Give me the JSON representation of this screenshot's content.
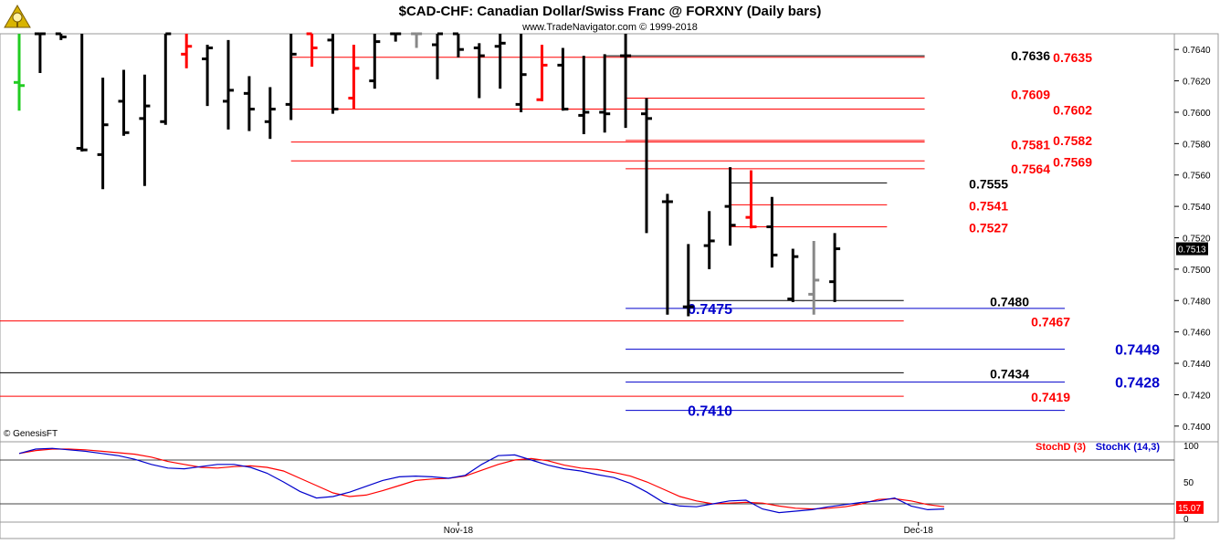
{
  "header": {
    "title": "$CAD-CHF:  Canadian Dollar/Swiss Franc @ FORXNY  (Daily bars)",
    "subtitle": "www.TradeNavigator.com © 1999-2018",
    "logo_icon": "trade-navigator-logo-icon"
  },
  "copyright": "© GenesisFT",
  "colors": {
    "bar_black": "#000000",
    "bar_red": "#ff0000",
    "bar_green": "#22cc22",
    "bar_gray": "#888888",
    "level_red": "#ff0000",
    "level_black": "#000000",
    "level_blue": "#0000cc",
    "stoch_d": "#ff0000",
    "stoch_k": "#0000ff",
    "last_price_bg": "#000000"
  },
  "chart_data": [
    {
      "type": "ohlc",
      "name": "price",
      "ylim": [
        0.739,
        0.765
      ],
      "yticks": [
        0.74,
        0.742,
        0.744,
        0.746,
        0.748,
        0.75,
        0.752,
        0.754,
        0.756,
        0.758,
        0.76,
        0.762,
        0.764
      ],
      "ytick_labels": [
        "0.7400",
        "0.7420",
        "0.7440",
        "0.7460",
        "0.7480",
        "0.7500",
        "0.7520",
        "0.7540",
        "0.7560",
        "0.7580",
        "0.7600",
        "0.7620",
        "0.7640"
      ],
      "xticks": [
        {
          "label": "Nov-18",
          "bar": 21
        },
        {
          "label": "Dec-18",
          "bar": 43
        }
      ],
      "last_price": "0.7513",
      "bars": [
        {
          "o": 0.7619,
          "h": 0.765,
          "l": 0.7601,
          "c": 0.7617,
          "color": "green"
        },
        {
          "o": 0.765,
          "h": 0.765,
          "l": 0.7625,
          "c": 0.765,
          "color": "black"
        },
        {
          "o": 0.765,
          "h": 0.765,
          "l": 0.7646,
          "c": 0.7648,
          "color": "black"
        },
        {
          "o": 0.7577,
          "h": 0.765,
          "l": 0.7575,
          "c": 0.7576,
          "color": "black"
        },
        {
          "o": 0.7573,
          "h": 0.7622,
          "l": 0.7551,
          "c": 0.7592,
          "color": "black"
        },
        {
          "o": 0.7607,
          "h": 0.7627,
          "l": 0.7585,
          "c": 0.7587,
          "color": "black"
        },
        {
          "o": 0.7596,
          "h": 0.7624,
          "l": 0.7553,
          "c": 0.7604,
          "color": "black"
        },
        {
          "o": 0.7594,
          "h": 0.765,
          "l": 0.7592,
          "c": 0.765,
          "color": "black"
        },
        {
          "o": 0.7637,
          "h": 0.765,
          "l": 0.7628,
          "c": 0.7642,
          "color": "red"
        },
        {
          "o": 0.7634,
          "h": 0.7643,
          "l": 0.7604,
          "c": 0.7641,
          "color": "black"
        },
        {
          "o": 0.7607,
          "h": 0.7646,
          "l": 0.7589,
          "c": 0.7614,
          "color": "black"
        },
        {
          "o": 0.7612,
          "h": 0.7623,
          "l": 0.7588,
          "c": 0.7602,
          "color": "black"
        },
        {
          "o": 0.7594,
          "h": 0.7616,
          "l": 0.7583,
          "c": 0.7602,
          "color": "black"
        },
        {
          "o": 0.7605,
          "h": 0.765,
          "l": 0.7595,
          "c": 0.7637,
          "color": "black"
        },
        {
          "o": 0.765,
          "h": 0.765,
          "l": 0.7629,
          "c": 0.7641,
          "color": "red"
        },
        {
          "o": 0.7646,
          "h": 0.765,
          "l": 0.7599,
          "c": 0.7602,
          "color": "black"
        },
        {
          "o": 0.7609,
          "h": 0.7643,
          "l": 0.7602,
          "c": 0.7628,
          "color": "red"
        },
        {
          "o": 0.762,
          "h": 0.765,
          "l": 0.7615,
          "c": 0.7645,
          "color": "black"
        },
        {
          "o": 0.765,
          "h": 0.765,
          "l": 0.7645,
          "c": 0.765,
          "color": "black"
        },
        {
          "o": 0.765,
          "h": 0.765,
          "l": 0.7641,
          "c": 0.765,
          "color": "gray"
        },
        {
          "o": 0.7643,
          "h": 0.765,
          "l": 0.7621,
          "c": 0.765,
          "color": "black"
        },
        {
          "o": 0.765,
          "h": 0.765,
          "l": 0.7635,
          "c": 0.764,
          "color": "black"
        },
        {
          "o": 0.7641,
          "h": 0.7644,
          "l": 0.7609,
          "c": 0.7636,
          "color": "black"
        },
        {
          "o": 0.7642,
          "h": 0.765,
          "l": 0.7615,
          "c": 0.7644,
          "color": "black"
        },
        {
          "o": 0.7605,
          "h": 0.765,
          "l": 0.76,
          "c": 0.7624,
          "color": "black"
        },
        {
          "o": 0.7608,
          "h": 0.7643,
          "l": 0.7607,
          "c": 0.763,
          "color": "red"
        },
        {
          "o": 0.763,
          "h": 0.7641,
          "l": 0.7601,
          "c": 0.7602,
          "color": "black"
        },
        {
          "o": 0.7598,
          "h": 0.7636,
          "l": 0.7586,
          "c": 0.76,
          "color": "black"
        },
        {
          "o": 0.76,
          "h": 0.7637,
          "l": 0.7587,
          "c": 0.7599,
          "color": "black"
        },
        {
          "o": 0.7636,
          "h": 0.765,
          "l": 0.759,
          "c": 0.7636,
          "color": "black"
        },
        {
          "o": 0.7599,
          "h": 0.7609,
          "l": 0.7523,
          "c": 0.7596,
          "color": "black"
        },
        {
          "o": 0.7543,
          "h": 0.7548,
          "l": 0.7471,
          "c": 0.7543,
          "color": "black"
        },
        {
          "o": 0.7476,
          "h": 0.7516,
          "l": 0.747,
          "c": 0.7476,
          "color": "black"
        },
        {
          "o": 0.7515,
          "h": 0.7537,
          "l": 0.75,
          "c": 0.7518,
          "color": "black"
        },
        {
          "o": 0.754,
          "h": 0.7565,
          "l": 0.7515,
          "c": 0.7528,
          "color": "black"
        },
        {
          "o": 0.7533,
          "h": 0.7563,
          "l": 0.7526,
          "c": 0.7527,
          "color": "red"
        },
        {
          "o": 0.7527,
          "h": 0.7546,
          "l": 0.7501,
          "c": 0.7509,
          "color": "black"
        },
        {
          "o": 0.7481,
          "h": 0.7513,
          "l": 0.7479,
          "c": 0.7508,
          "color": "black"
        },
        {
          "o": 0.7484,
          "h": 0.7518,
          "l": 0.7471,
          "c": 0.7493,
          "color": "gray"
        },
        {
          "o": 0.7492,
          "h": 0.7523,
          "l": 0.7479,
          "c": 0.7513,
          "color": "black"
        }
      ],
      "levels": [
        {
          "value": 0.7636,
          "label": "0.7636",
          "color": "black",
          "x_from_bar": 28,
          "x_to_bar": 43.3
        },
        {
          "value": 0.7635,
          "label": "0.7635",
          "color": "red",
          "x_from_bar": 13,
          "x_to_bar": 43.3
        },
        {
          "value": 0.7609,
          "label": "0.7609",
          "color": "red",
          "x_from_bar": 29,
          "x_to_bar": 43.3
        },
        {
          "value": 0.7602,
          "label": "0.7602",
          "color": "red",
          "x_from_bar": 13,
          "x_to_bar": 43.3
        },
        {
          "value": 0.7581,
          "label": "0.7581",
          "color": "red",
          "x_from_bar": 13,
          "x_to_bar": 43.3
        },
        {
          "value": 0.7582,
          "label": "0.7582",
          "color": "red",
          "x_from_bar": 29,
          "x_to_bar": 43.3
        },
        {
          "value": 0.7569,
          "label": "0.7569",
          "color": "red",
          "x_from_bar": 13,
          "x_to_bar": 43.3
        },
        {
          "value": 0.7564,
          "label": "0.7564",
          "color": "red",
          "x_from_bar": 29,
          "x_to_bar": 43.3
        },
        {
          "value": 0.7555,
          "label": "0.7555",
          "color": "black",
          "x_from_bar": 34,
          "x_to_bar": 41.5
        },
        {
          "value": 0.7541,
          "label": "0.7541",
          "color": "red",
          "x_from_bar": 34,
          "x_to_bar": 41.5
        },
        {
          "value": 0.7527,
          "label": "0.7527",
          "color": "red",
          "x_from_bar": 34,
          "x_to_bar": 41.5
        },
        {
          "value": 0.748,
          "label": "0.7480",
          "color": "black",
          "x_from_bar": 32,
          "x_to_bar": 42.3
        },
        {
          "value": 0.7475,
          "label": "0.7475",
          "color": "blue",
          "x_from_bar": 29,
          "x_to_bar": 50
        },
        {
          "value": 0.7467,
          "label": "0.7467",
          "color": "red",
          "x_from_bar": -1,
          "x_to_bar": 42.3
        },
        {
          "value": 0.7449,
          "label": "0.7449",
          "color": "blue",
          "x_from_bar": 29,
          "x_to_bar": 50
        },
        {
          "value": 0.7434,
          "label": "0.7434",
          "color": "black",
          "x_from_bar": -1,
          "x_to_bar": 42.3
        },
        {
          "value": 0.7428,
          "label": "0.7428",
          "color": "blue",
          "x_from_bar": 29,
          "x_to_bar": 50
        },
        {
          "value": 0.7419,
          "label": "0.7419",
          "color": "red",
          "x_from_bar": -1,
          "x_to_bar": 42.3
        },
        {
          "value": 0.741,
          "label": "0.7410",
          "color": "blue",
          "x_from_bar": 29,
          "x_to_bar": 50
        }
      ]
    },
    {
      "type": "line",
      "name": "stochastic",
      "ylim": [
        0,
        100
      ],
      "yticks": [
        0,
        50,
        100
      ],
      "ytick_labels": [
        "0",
        "50",
        "100"
      ],
      "reference_lines": [
        80,
        20
      ],
      "last_value": "15.07",
      "series": [
        {
          "name": "StochD (3)",
          "color": "red",
          "values": [
            89,
            93,
            95,
            95,
            94,
            92,
            90,
            88,
            84,
            78,
            74,
            70,
            69,
            71,
            72,
            70,
            65,
            55,
            45,
            35,
            30,
            32,
            38,
            45,
            52,
            54,
            55,
            58,
            66,
            74,
            80,
            82,
            79,
            73,
            69,
            67,
            63,
            58,
            50,
            40,
            30,
            24,
            20,
            21,
            22,
            21,
            17,
            14,
            13,
            14,
            16,
            20,
            26,
            27,
            24,
            19,
            16
          ]
        },
        {
          "name": "StochK (14,3)",
          "color": "blue",
          "values": [
            89,
            95,
            96,
            94,
            92,
            89,
            86,
            81,
            74,
            69,
            68,
            71,
            74,
            74,
            70,
            62,
            50,
            37,
            28,
            30,
            36,
            44,
            52,
            57,
            58,
            57,
            55,
            59,
            74,
            86,
            87,
            80,
            73,
            68,
            65,
            60,
            56,
            48,
            36,
            22,
            17,
            16,
            20,
            24,
            25,
            13,
            8,
            10,
            12,
            16,
            19,
            22,
            24,
            28,
            17,
            12,
            13
          ]
        }
      ]
    }
  ]
}
